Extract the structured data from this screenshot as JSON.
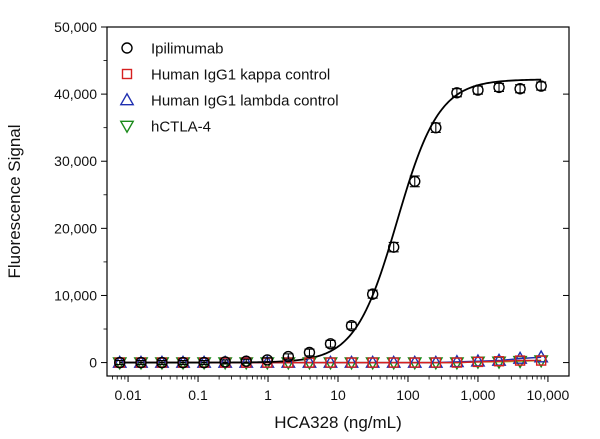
{
  "chart_data": {
    "type": "scatter",
    "xlabel": "HCA328 (ng/mL)",
    "ylabel": "Fluorescence Signal",
    "xscale": "log",
    "xlim": [
      0.005,
      20000
    ],
    "ylim": [
      -2000,
      50000
    ],
    "x_ticks": [
      0.01,
      0.1,
      1,
      10,
      100,
      1000,
      10000
    ],
    "x_tick_labels": [
      "0.01",
      "0.1",
      "1",
      "10",
      "100",
      "1,000",
      "10,000"
    ],
    "y_ticks": [
      0,
      10000,
      20000,
      30000,
      40000,
      50000
    ],
    "y_tick_labels": [
      "0",
      "10,000",
      "20,000",
      "30,000",
      "40,000",
      "50,000"
    ],
    "grid": false,
    "legend_position": "top-left",
    "series": [
      {
        "name": "Ipilimumab",
        "marker": "circle",
        "color": "#000000",
        "x": [
          0.0076,
          0.0153,
          0.0305,
          0.061,
          0.122,
          0.244,
          0.488,
          0.977,
          1.95,
          3.91,
          7.81,
          15.6,
          31.3,
          62.5,
          125,
          250,
          500,
          1000,
          2000,
          4000,
          8000
        ],
        "y": [
          0,
          0,
          0,
          0,
          0,
          100,
          200,
          400,
          900,
          1500,
          2800,
          5500,
          10200,
          17200,
          27000,
          35000,
          40200,
          40600,
          41000,
          40800,
          41200
        ],
        "error": [
          300,
          300,
          300,
          300,
          300,
          300,
          300,
          300,
          400,
          500,
          500,
          500,
          600,
          700,
          800,
          700,
          600,
          600,
          600,
          600,
          600
        ],
        "fit": {
          "bottom": 0,
          "top": 42200,
          "ec50": 70,
          "hill": 1.45,
          "color": "#000000"
        }
      },
      {
        "name": "Human IgG1 kappa control",
        "marker": "square",
        "color": "#d62020",
        "x": [
          0.0076,
          0.0153,
          0.0305,
          0.061,
          0.122,
          0.244,
          0.488,
          0.977,
          1.95,
          3.91,
          7.81,
          15.6,
          31.3,
          62.5,
          125,
          250,
          500,
          1000,
          2000,
          4000,
          8000
        ],
        "y": [
          0,
          0,
          0,
          0,
          0,
          0,
          0,
          0,
          0,
          0,
          0,
          0,
          0,
          0,
          0,
          0,
          0,
          100,
          200,
          300,
          300
        ],
        "fit": {
          "color": "#d62020"
        }
      },
      {
        "name": "Human IgG1 lambda control",
        "marker": "triangle-up",
        "color": "#1f2fb0",
        "x": [
          0.0076,
          0.0153,
          0.0305,
          0.061,
          0.122,
          0.244,
          0.488,
          0.977,
          1.95,
          3.91,
          7.81,
          15.6,
          31.3,
          62.5,
          125,
          250,
          500,
          1000,
          2000,
          4000,
          8000
        ],
        "y": [
          0,
          0,
          0,
          0,
          0,
          0,
          0,
          0,
          0,
          0,
          0,
          0,
          0,
          0,
          0,
          0,
          100,
          200,
          300,
          600,
          800
        ],
        "fit": {
          "color": "#1f2fb0"
        }
      },
      {
        "name": "hCTLA-4",
        "marker": "triangle-down",
        "color": "#1a8a1a",
        "x": [
          0.0076,
          0.0153,
          0.0305,
          0.061,
          0.122,
          0.244,
          0.488,
          0.977,
          1.95,
          3.91,
          7.81,
          15.6,
          31.3,
          62.5,
          125,
          250,
          500,
          1000,
          2000,
          4000,
          8000
        ],
        "y": [
          0,
          0,
          0,
          0,
          0,
          0,
          0,
          0,
          0,
          0,
          0,
          0,
          0,
          0,
          0,
          0,
          0,
          100,
          100,
          200,
          300
        ],
        "fit": {
          "color": "#9acd32"
        }
      }
    ]
  }
}
